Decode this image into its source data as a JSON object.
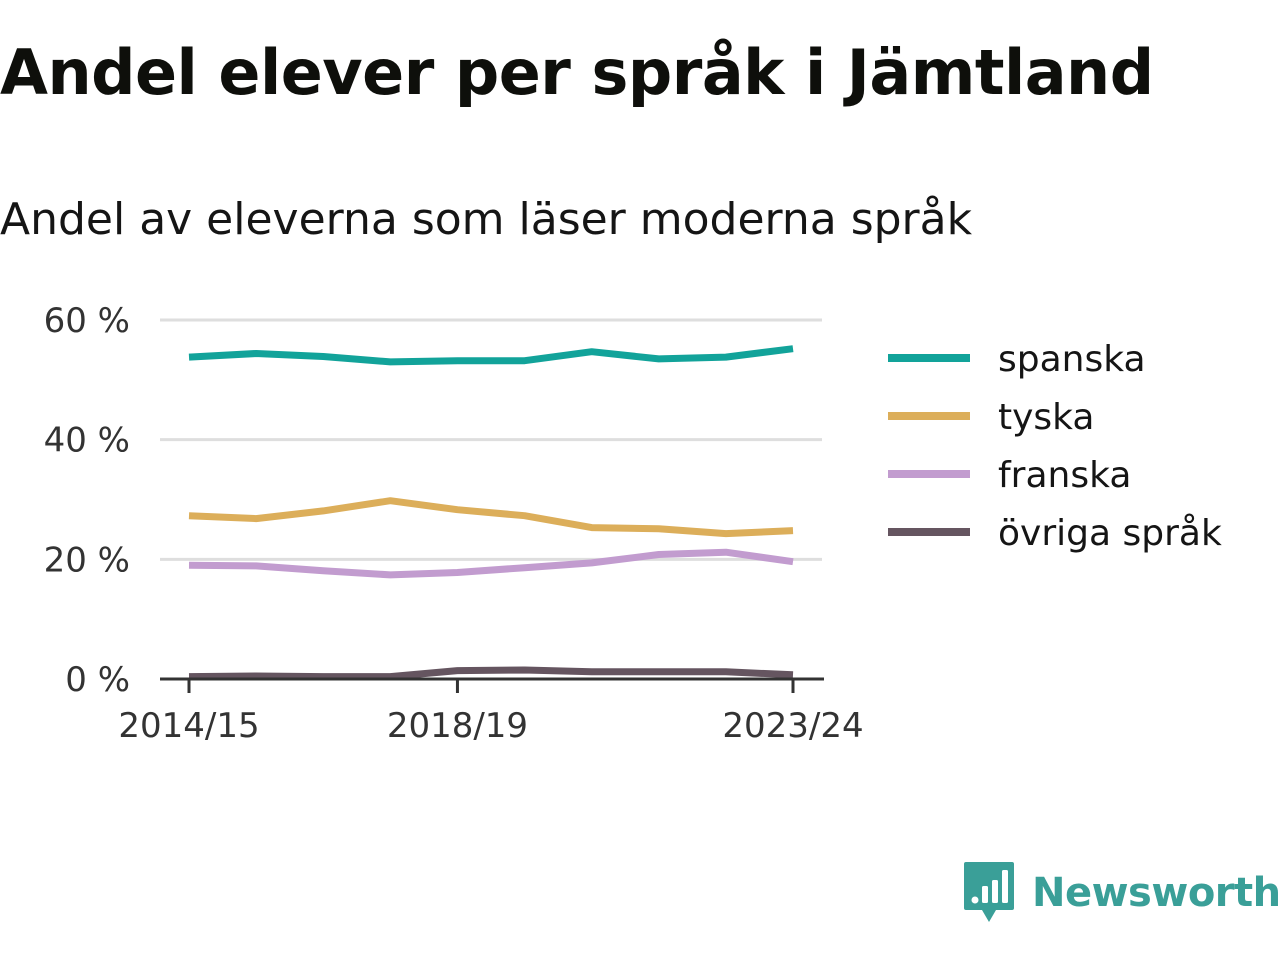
{
  "title": "Andel elever per språk i Jämtland",
  "subtitle": "Andel av eleverna som läser moderna språk",
  "brand": {
    "name": "Newsworthy",
    "icon": "newsworthy-logo-icon",
    "color": "#3a9f98"
  },
  "chart_data": {
    "type": "line",
    "x": [
      "2014/15",
      "2015/16",
      "2016/17",
      "2017/18",
      "2018/19",
      "2019/20",
      "2020/21",
      "2021/22",
      "2022/23",
      "2023/24"
    ],
    "x_tick_labels": [
      "2014/15",
      "2018/19",
      "2023/24"
    ],
    "y_ticks": [
      0,
      20,
      40,
      60
    ],
    "y_tick_labels": [
      "0 %",
      "20 %",
      "40 %",
      "60 %"
    ],
    "ylim": [
      0,
      60
    ],
    "grid": true,
    "legend_position": "right",
    "series": [
      {
        "name": "spanska",
        "color": "#12a39a",
        "values": [
          53.8,
          54.4,
          53.9,
          53.0,
          53.2,
          53.2,
          54.7,
          53.5,
          53.8,
          55.2
        ]
      },
      {
        "name": "tyska",
        "color": "#dcae5a",
        "values": [
          27.3,
          26.8,
          28.1,
          29.8,
          28.3,
          27.3,
          25.3,
          25.1,
          24.3,
          24.8
        ]
      },
      {
        "name": "franska",
        "color": "#c29ccf",
        "values": [
          19.0,
          18.9,
          18.1,
          17.4,
          17.8,
          18.6,
          19.4,
          20.8,
          21.2,
          19.6
        ]
      },
      {
        "name": "övriga språk",
        "color": "#655560",
        "values": [
          0.4,
          0.5,
          0.4,
          0.4,
          1.4,
          1.5,
          1.2,
          1.2,
          1.2,
          0.7
        ]
      }
    ]
  }
}
